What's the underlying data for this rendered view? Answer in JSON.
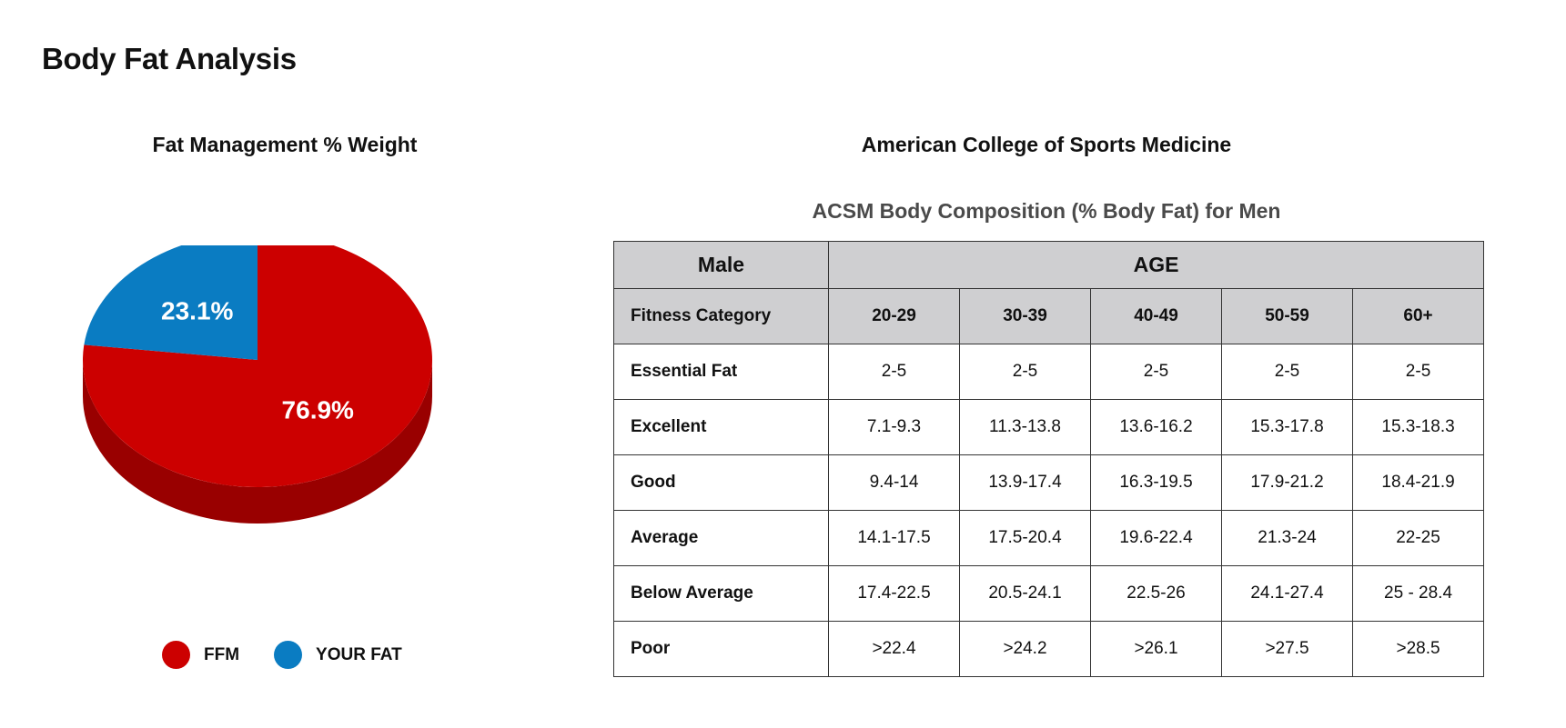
{
  "page": {
    "title": "Body Fat Analysis"
  },
  "pie": {
    "title": "Fat Management % Weight",
    "legend": [
      {
        "label": "FFM",
        "color": "#cc0000"
      },
      {
        "label": "YOUR FAT",
        "color": "#0a7cc2"
      }
    ]
  },
  "chart_data": {
    "type": "pie",
    "title": "Fat Management % Weight",
    "slices": [
      {
        "label": "FFM",
        "value": 76.9,
        "display": "76.9%",
        "color": "#cc0000",
        "shade": "#990000"
      },
      {
        "label": "YOUR FAT",
        "value": 23.1,
        "display": "23.1%",
        "color": "#0a7cc2",
        "shade": "#075c91"
      }
    ],
    "legend_position": "bottom"
  },
  "acsm": {
    "heading": "American College of Sports Medicine",
    "table_title": "ACSM Body Composition (% Body Fat) for Men",
    "header_group": {
      "first": "Male",
      "span": "AGE"
    },
    "columns": [
      "Fitness Category",
      "20-29",
      "30-39",
      "40-49",
      "50-59",
      "60+"
    ],
    "rows": [
      [
        "Essential Fat",
        "2-5",
        "2-5",
        "2-5",
        "2-5",
        "2-5"
      ],
      [
        "Excellent",
        "7.1-9.3",
        "11.3-13.8",
        "13.6-16.2",
        "15.3-17.8",
        "15.3-18.3"
      ],
      [
        "Good",
        "9.4-14",
        "13.9-17.4",
        "16.3-19.5",
        "17.9-21.2",
        "18.4-21.9"
      ],
      [
        "Average",
        "14.1-17.5",
        "17.5-20.4",
        "19.6-22.4",
        "21.3-24",
        "22-25"
      ],
      [
        "Below Average",
        "17.4-22.5",
        "20.5-24.1",
        "22.5-26",
        "24.1-27.4",
        "25 - 28.4"
      ],
      [
        "Poor",
        ">22.4",
        ">24.2",
        ">26.1",
        ">27.5",
        ">28.5"
      ]
    ]
  }
}
